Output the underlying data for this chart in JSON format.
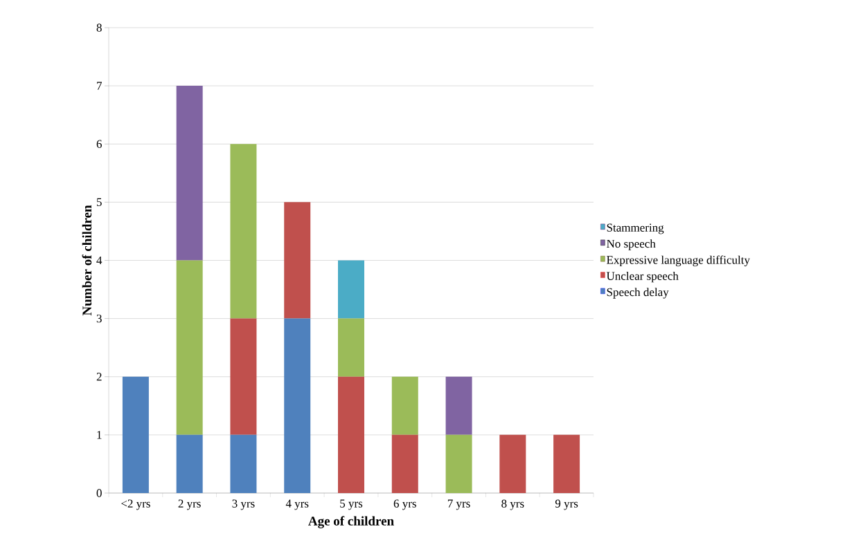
{
  "chart_data": {
    "type": "bar",
    "stacked": true,
    "xlabel": "Age of children",
    "ylabel": "Number of children",
    "categories": [
      "<2 yrs",
      "2 yrs",
      "3 yrs",
      "4 yrs",
      "5 yrs",
      "6 yrs",
      "7 yrs",
      "8 yrs",
      "9 yrs"
    ],
    "series": [
      {
        "name": "Speech delay",
        "color": "#4f81bd",
        "values": [
          2,
          1,
          1,
          3,
          0,
          0,
          0,
          0,
          0
        ]
      },
      {
        "name": "Unclear speech",
        "color": "#c0504d",
        "values": [
          0,
          0,
          2,
          2,
          2,
          1,
          0,
          1,
          1
        ]
      },
      {
        "name": "Expressive language difficulty",
        "color": "#9bbb59",
        "values": [
          0,
          3,
          3,
          0,
          1,
          1,
          1,
          0,
          0
        ]
      },
      {
        "name": "No speech",
        "color": "#8064a2",
        "values": [
          0,
          3,
          0,
          0,
          0,
          0,
          1,
          0,
          0
        ]
      },
      {
        "name": "Stammering",
        "color": "#4bacc6",
        "values": [
          0,
          0,
          0,
          0,
          1,
          0,
          0,
          0,
          0
        ]
      }
    ],
    "ylim": [
      0,
      8
    ],
    "yticks": [
      0,
      1,
      2,
      3,
      4,
      5,
      6,
      7,
      8
    ],
    "grid": "y",
    "legend": "right"
  }
}
